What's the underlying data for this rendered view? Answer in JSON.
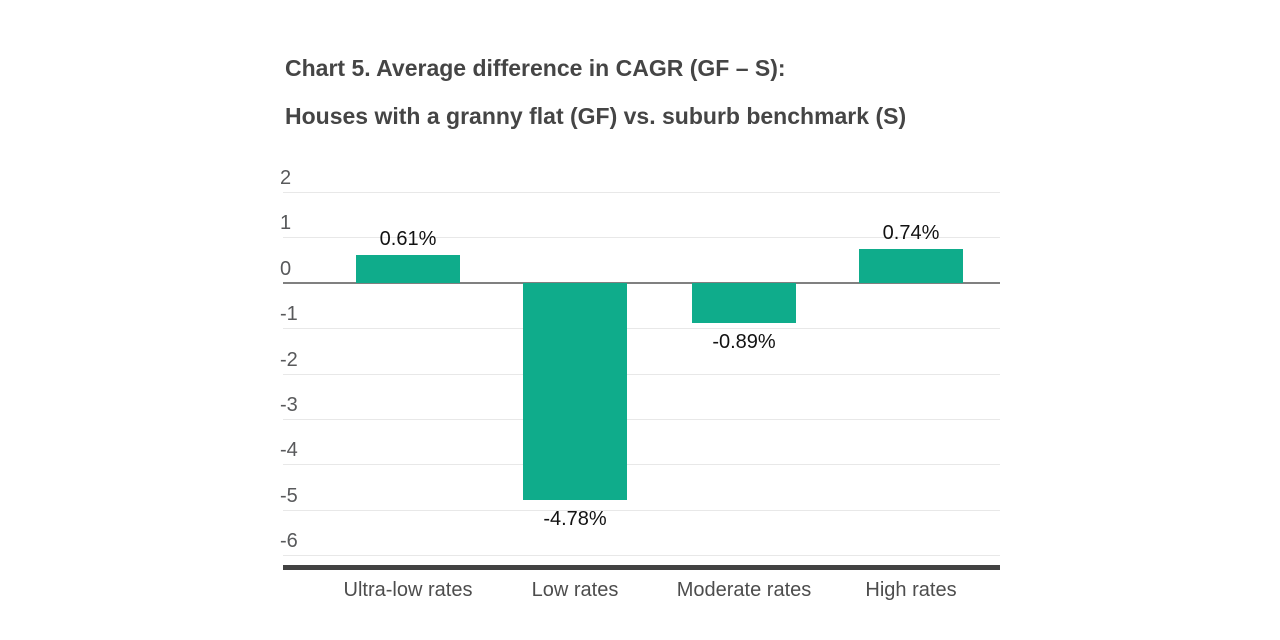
{
  "title": {
    "line1": "Chart 5. Average difference in CAGR (GF – S):",
    "line2": "Houses with a granny flat (GF) vs. suburb benchmark (S)"
  },
  "chart_data": {
    "type": "bar",
    "title": "Chart 5. Average difference in CAGR (GF – S): Houses with a granny flat (GF) vs. suburb benchmark (S)",
    "categories": [
      "Ultra-low rates",
      "Low rates",
      "Moderate rates",
      "High rates"
    ],
    "values": [
      0.61,
      -4.78,
      -0.89,
      0.74
    ],
    "value_labels": [
      "0.61%",
      "-4.78%",
      "-0.89%",
      "0.74%"
    ],
    "unit": "%",
    "yticks": [
      2,
      1,
      0,
      -1,
      -2,
      -3,
      -4,
      -5,
      -6
    ],
    "ylim": [
      2,
      -6.2
    ],
    "xlabel": "",
    "ylabel": "",
    "grid": true,
    "legend": "none"
  },
  "colors": {
    "bar": "#0fac8b",
    "gridline": "#e8e8e8",
    "zero_line": "#808080",
    "axis_line": "#424242",
    "title_text": "#454545",
    "tick_text": "#58595b",
    "category_text": "#4d4d4d",
    "value_text": "#121212",
    "background": "#ffffff"
  }
}
